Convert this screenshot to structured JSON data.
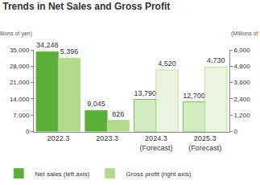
{
  "chart_data": {
    "type": "bar",
    "title": "Trends in Net Sales and Gross Profit",
    "categories": [
      "2022.3",
      "2023.3",
      "2024.3\n(Forecast)",
      "2025.3\n(Forecast)"
    ],
    "ylabel": "(Millions of yen)",
    "y2label": "(Millions of yen)",
    "series": [
      {
        "name": "Net sales (left axis)",
        "color": "#5aaf3a",
        "colors": [
          "#5aaf3a",
          "#5aaf3a",
          "#d3ebc1",
          "#d3ebc1"
        ],
        "values": [
          34248,
          9045,
          13790,
          12700
        ],
        "value_labels": [
          "34,248",
          "9,045",
          "13,790",
          "12,700"
        ]
      },
      {
        "name": "Gross profit (right axis)",
        "axis": "y2",
        "color": "#b2d98c",
        "colors": [
          "#b2d98c",
          "#b2d98c",
          "#eaf5df",
          "#eaf5df"
        ],
        "values": [
          5396,
          826,
          4520,
          4730
        ],
        "value_labels": [
          "5,396",
          "826",
          "4,520",
          "4,730"
        ]
      }
    ],
    "ylim": [
      0,
      35000
    ],
    "yticks": [
      0,
      {
        "value": 7000,
        "label": "7,000"
      },
      {
        "value": 14000,
        "label": "14,000"
      },
      {
        "value": 21000,
        "label": "21,000"
      },
      {
        "value": 28000,
        "label": "28,000"
      },
      {
        "value": 35000,
        "label": "35,000"
      }
    ],
    "y2lim": [
      0,
      6000
    ],
    "y2ticks": [
      0,
      {
        "value": 1200,
        "label": "1,200"
      },
      {
        "value": 2400,
        "label": "2,400"
      },
      {
        "value": 3600,
        "label": "3,600"
      },
      {
        "value": 4800,
        "label": "4,800"
      },
      {
        "value": 6000,
        "label": "6,000"
      }
    ],
    "data_labels": true,
    "legend": "bottom",
    "grid": false
  }
}
